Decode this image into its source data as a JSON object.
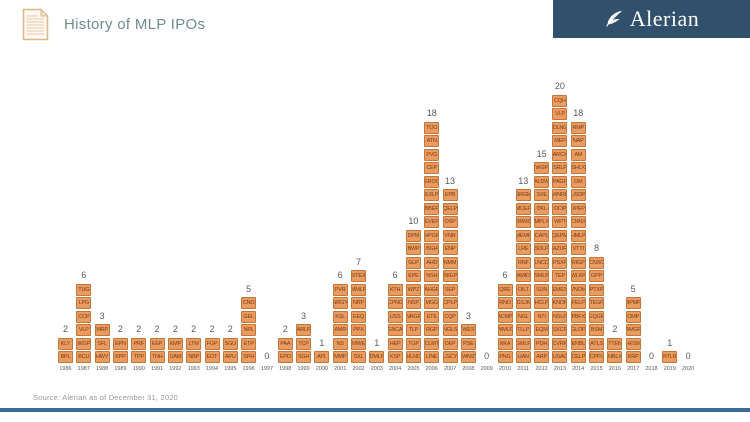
{
  "header": {
    "title": "History of MLP IPOs",
    "brand": "Alerian"
  },
  "footer": {
    "source": "Source: Alerian as of December 31, 2020"
  },
  "colors": {
    "brand_bg": "#30506C",
    "title_color": "#6F8B8E",
    "bar_fill": "#EA9B60",
    "bar_border": "#C4773C",
    "ticker_text": "#7A3C12",
    "axis_label": "#595959",
    "bottom_rule": "#3E6C9A",
    "doc_icon": "#DDB88E"
  },
  "chart_data": {
    "type": "bar",
    "title": "History of MLP IPOs",
    "xlabel": "",
    "ylabel": "",
    "legend": "none",
    "grid": "off",
    "ylim": [
      0,
      20
    ],
    "categories": [
      "1986",
      "1987",
      "1988",
      "1989",
      "1990",
      "1991",
      "1992",
      "1993",
      "1994",
      "1995",
      "1996",
      "1997",
      "1998",
      "1999",
      "2000",
      "2001",
      "2002",
      "2003",
      "2004",
      "2005",
      "2006",
      "2007",
      "2008",
      "2009",
      "2010",
      "2011",
      "2012",
      "2013",
      "2014",
      "2015",
      "2016",
      "2017",
      "2018",
      "2019",
      "2020"
    ],
    "values": [
      2,
      6,
      3,
      2,
      2,
      2,
      2,
      2,
      2,
      2,
      5,
      0,
      2,
      3,
      1,
      6,
      7,
      1,
      6,
      10,
      18,
      13,
      3,
      0,
      6,
      13,
      15,
      20,
      18,
      8,
      2,
      5,
      0,
      1,
      0
    ],
    "years": [
      {
        "year": "1986",
        "count": 2,
        "tickers": [
          "KLY",
          "BPL"
        ]
      },
      {
        "year": "1987",
        "count": 6,
        "tickers": [
          "TUG",
          "LPG",
          "CCP",
          "VLP",
          "WGP",
          "BCU"
        ]
      },
      {
        "year": "1988",
        "count": 3,
        "tickers": [
          "MRP",
          "SFL",
          "HWY"
        ]
      },
      {
        "year": "1989",
        "count": 2,
        "tickers": [
          "EPN",
          "KPP"
        ]
      },
      {
        "year": "1990",
        "count": 2,
        "tickers": [
          "PRF",
          "TPP"
        ]
      },
      {
        "year": "1991",
        "count": 2,
        "tickers": [
          "EEP",
          "TNH"
        ]
      },
      {
        "year": "1992",
        "count": 2,
        "tickers": [
          "KMP",
          "UAM"
        ]
      },
      {
        "year": "1993",
        "count": 2,
        "tickers": [
          "LTM",
          "NBP"
        ]
      },
      {
        "year": "1994",
        "count": 2,
        "tickers": [
          "FGP",
          "EOT"
        ]
      },
      {
        "year": "1995",
        "count": 2,
        "tickers": [
          "SGU",
          "APU"
        ]
      },
      {
        "year": "1996",
        "count": 5,
        "tickers": [
          "CNO",
          "GEL",
          "NPL",
          "ETP",
          "SPH"
        ]
      },
      {
        "year": "1997",
        "count": 0,
        "tickers": []
      },
      {
        "year": "1998",
        "count": 2,
        "tickers": [
          "PAA",
          "EPD"
        ]
      },
      {
        "year": "1999",
        "count": 3,
        "tickers": [
          "ARLP",
          "TCP",
          "SGH"
        ]
      },
      {
        "year": "2000",
        "count": 1,
        "tickers": [
          "APL"
        ]
      },
      {
        "year": "2001",
        "count": 6,
        "tickers": [
          "PVR",
          "NRGY",
          "KSL",
          "AMR",
          "NS",
          "MMP"
        ]
      },
      {
        "year": "2002",
        "count": 7,
        "tickers": [
          "XTEX",
          "MMLP",
          "NRP",
          "EEQ",
          "PPX",
          "MWE",
          "SXL"
        ]
      },
      {
        "year": "2003",
        "count": 1,
        "tickers": [
          "DMLP"
        ]
      },
      {
        "year": "2004",
        "count": 6,
        "tickers": [
          "KTH",
          "CPNO",
          "USS",
          "ENCA",
          "HEP",
          "KSP"
        ]
      },
      {
        "year": "2005",
        "count": 10,
        "tickers": [
          "DPM",
          "BWP",
          "GLP",
          "EPE",
          "WPZ",
          "NSP",
          "NRGP",
          "TLP",
          "TGP",
          "HLND"
        ]
      },
      {
        "year": "2006",
        "count": 18,
        "tickers": [
          "TOO",
          "ATN",
          "PVG",
          "CEP",
          "EROC",
          "EXLP",
          "BBEP",
          "EVEP",
          "HPGP",
          "BGH",
          "AHD",
          "NSH",
          "AHGP",
          "MGG",
          "ETE",
          "RGP",
          "CLMT",
          "LINE"
        ]
      },
      {
        "year": "2007",
        "count": 13,
        "tickers": [
          "EPB",
          "QELP",
          "OSP",
          "VNR",
          "ENP",
          "NMM",
          "BKEP",
          "SEP",
          "CPLP",
          "CQP",
          "NGLS",
          "DEP",
          "LGCY"
        ]
      },
      {
        "year": "2008",
        "count": 3,
        "tickers": [
          "WES",
          "PSE",
          "WMZ"
        ]
      },
      {
        "year": "2009",
        "count": 0,
        "tickers": []
      },
      {
        "year": "2010",
        "count": 6,
        "tickers": [
          "QRE",
          "RNO",
          "ACMP",
          "WMLP",
          "NKA",
          "PNG"
        ]
      },
      {
        "year": "2011",
        "count": 13,
        "tickers": [
          "NRGM",
          "MCEP",
          "RRMS",
          "MEMP",
          "LRE",
          "RNF",
          "AMID",
          "OILT",
          "GSJK",
          "NGL",
          "TLLP",
          "GMLP",
          "UAN"
        ]
      },
      {
        "year": "2012",
        "count": 15,
        "tickers": [
          "WGP",
          "ALDW",
          "SXE",
          "DKL",
          "MPLX",
          "CAPL",
          "SDLP",
          "LNCO",
          "SMLP",
          "SUN",
          "HCLP",
          "NTI",
          "EQM",
          "PDH",
          "ARP"
        ]
      },
      {
        "year": "2013",
        "count": 20,
        "tickers": [
          "CQH",
          "VLP",
          "DLNG",
          "MEP",
          "ARCX",
          "SRLP",
          "PAGP",
          "WNRL",
          "OCIP",
          "WPT",
          "QEPM",
          "AZUR",
          "PSXP",
          "TEP",
          "EMES",
          "KNOP",
          "NSLP",
          "SXCP",
          "CVRR",
          "USAC"
        ]
      },
      {
        "year": "2014",
        "count": 18,
        "tickers": [
          "RMP",
          "NAP",
          "AM",
          "SHLX",
          "DM",
          "USDP",
          "JPEP",
          "CNNX",
          "HMLP",
          "VTTI",
          "RIGP",
          "WLKP",
          "VNOM",
          "FELP",
          "PBFX",
          "GLOP",
          "ENBL",
          "CELP"
        ]
      },
      {
        "year": "2015",
        "count": 8,
        "tickers": [
          "CNXC",
          "GPP",
          "PTXP",
          "TEGP",
          "EQGP",
          "BSM",
          "ATLS",
          "CPPL"
        ]
      },
      {
        "year": "2016",
        "count": 2,
        "tickers": [
          "TTEN",
          "NBLX"
        ]
      },
      {
        "year": "2017",
        "count": 5,
        "tickers": [
          "BPMP",
          "OMP",
          "AMGP",
          "HESM",
          "KRP"
        ]
      },
      {
        "year": "2018",
        "count": 0,
        "tickers": []
      },
      {
        "year": "2019",
        "count": 1,
        "tickers": [
          "RTLR"
        ]
      },
      {
        "year": "2020",
        "count": 0,
        "tickers": []
      }
    ]
  }
}
